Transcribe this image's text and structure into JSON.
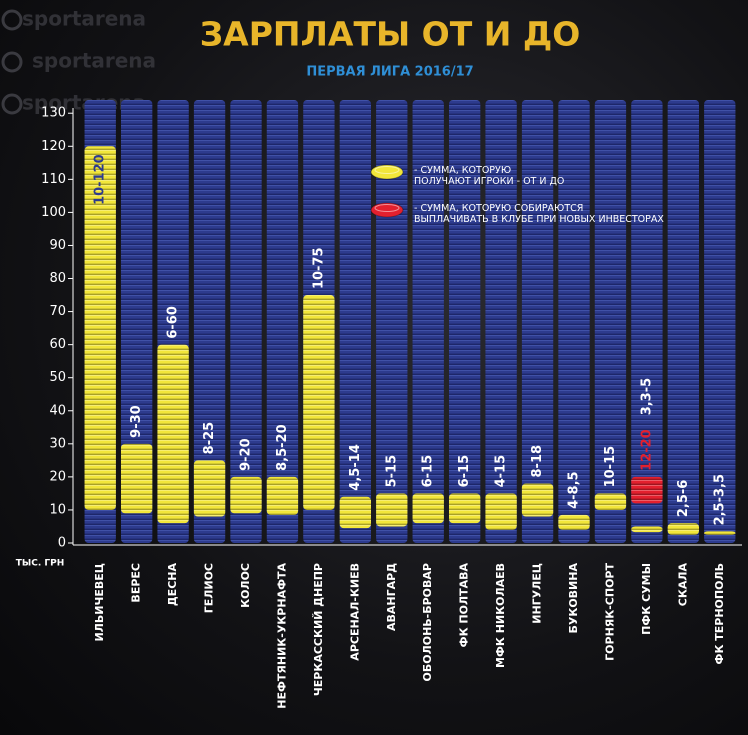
{
  "watermark": "sportarena",
  "chart_data": {
    "type": "range-bar",
    "title": "ЗАРПЛАТЫ ОТ И ДО",
    "subtitle": "ПЕРВАЯ ЛИГА 2016/17",
    "y_unit": "ТЫС. ГРН",
    "categories": [
      "ИЛЬИЧЕВЕЦ",
      "ВЕРЕС",
      "ДЕСНА",
      "ГЕЛИОС",
      "КОЛОС",
      "НЕФТЯНИК-УКРНАФТА",
      "ЧЕРКАССКИЙ ДНЕПР",
      "АРСЕНАЛ-КИЕВ",
      "АВАНГАРД",
      "ОБОЛОНЬ-БРОВАР",
      "ФК ПОЛТАВА",
      "МФК НИКОЛАЕВ",
      "ИНГУЛЕЦ",
      "БУКОВИНА",
      "ГОРНЯК-СПОРТ",
      "ПФК СУМЫ",
      "СКАЛА",
      "ФК ТЕРНОПОЛЬ"
    ],
    "series": [
      {
        "name": "- СУММА, КОТОРУЮ\nПОЛУЧАЮТ ИГРОКИ - ОТ И ДО",
        "color": "#f2e63a",
        "low": [
          10,
          9,
          6,
          8,
          9,
          8.5,
          10,
          4.5,
          5,
          6,
          6,
          4,
          8,
          4,
          10,
          3.3,
          2.5,
          2.5
        ],
        "high": [
          120,
          30,
          60,
          25,
          20,
          20,
          75,
          14,
          15,
          15,
          15,
          15,
          18,
          8.5,
          15,
          5,
          6,
          3.5
        ],
        "value_labels": [
          "10-120",
          "9-30",
          "6-60",
          "8-25",
          "9-20",
          "8,5-20",
          "10-75",
          "4,5-14",
          "5-15",
          "6-15",
          "6-15",
          "4-15",
          "8-18",
          "4-8,5",
          "10-15",
          "3,3-5",
          "2,5-6",
          "2,5-3,5"
        ]
      },
      {
        "name": "- СУММА, КОТОРУЮ СОБИРАЮТСЯ\nВЫПЛАЧИВАТЬ В КЛУБЕ ПРИ НОВЫХ ИНВЕСТОРАХ",
        "color": "#e3202e",
        "low": [
          null,
          null,
          null,
          null,
          null,
          null,
          null,
          null,
          null,
          null,
          null,
          null,
          null,
          null,
          null,
          12,
          null,
          null
        ],
        "high": [
          null,
          null,
          null,
          null,
          null,
          null,
          null,
          null,
          null,
          null,
          null,
          null,
          null,
          null,
          null,
          20,
          null,
          null
        ],
        "value_labels": [
          null,
          null,
          null,
          null,
          null,
          null,
          null,
          null,
          null,
          null,
          null,
          null,
          null,
          null,
          null,
          "12-20",
          null,
          null
        ]
      }
    ],
    "column_color": "#2d3b8e",
    "ylim": [
      0,
      134
    ],
    "yticks": [
      0,
      10,
      20,
      30,
      40,
      50,
      60,
      70,
      80,
      90,
      100,
      110,
      120,
      130
    ]
  }
}
